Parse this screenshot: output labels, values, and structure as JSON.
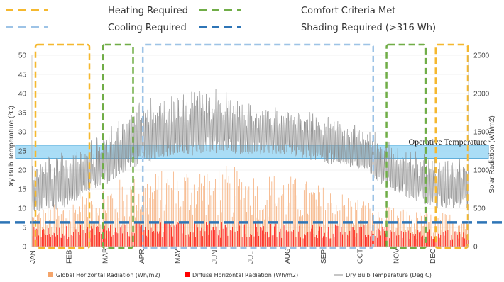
{
  "chart_data": {
    "type": "area",
    "xlabel": "",
    "ylabel_left": "Dry Bulb Temperature (°C)",
    "ylabel_right": "Solar Radiation (Wh/m2)",
    "ylim_left": [
      0,
      50
    ],
    "ylim_right": [
      0,
      2500
    ],
    "yticks_left": [
      "0",
      "5",
      "10",
      "15",
      "20",
      "25",
      "30",
      "35",
      "40",
      "45",
      "50"
    ],
    "yticks_right": [
      "0",
      "500",
      "1000",
      "1500",
      "2000",
      "2500"
    ],
    "months": [
      "JAN",
      "FEB",
      "MAR",
      "APR",
      "MAY",
      "JUN",
      "JUL",
      "AUG",
      "SEP",
      "OCT",
      "NOV",
      "DEC"
    ],
    "series": [
      {
        "name": "Global Horizontal Radiation (Wh/m2)",
        "color": "#f4a46a",
        "monthly_peak_wh_m2": [
          500,
          600,
          850,
          950,
          1050,
          1100,
          1000,
          950,
          800,
          650,
          500,
          450
        ]
      },
      {
        "name": "Diffuse Horizontal Radiation (Wh/m2)",
        "color": "#ff0000",
        "monthly_peak_wh_m2": [
          250,
          280,
          300,
          320,
          330,
          320,
          320,
          300,
          300,
          280,
          250,
          230
        ]
      },
      {
        "name": "Dry Bulb Temperature (Deg C)",
        "color": "#8c8c8c",
        "monthly_range_c": [
          [
            7,
            24
          ],
          [
            8,
            26
          ],
          [
            14,
            31
          ],
          [
            19,
            39
          ],
          [
            21,
            41
          ],
          [
            22,
            43
          ],
          [
            22,
            38
          ],
          [
            22,
            37
          ],
          [
            20,
            35
          ],
          [
            18,
            33
          ],
          [
            12,
            28
          ],
          [
            8,
            24
          ]
        ]
      }
    ],
    "legend_top": [
      {
        "label": "Heating Required",
        "color": "#f5b82e",
        "style": "dashed"
      },
      {
        "label": "Comfort Criteria Met",
        "color": "#70ad47",
        "style": "dashed"
      },
      {
        "label": "Cooling Required",
        "color": "#9dc3e6",
        "style": "dashed"
      },
      {
        "label": "Shading Required (>316 Wh)",
        "color": "#2e75b6",
        "style": "dashed"
      }
    ],
    "operative_band": {
      "label": "Operative Temperature",
      "range_c": [
        23,
        26.5
      ],
      "fill": "#9bd7f5",
      "stroke": "#2f8fc9"
    },
    "shading_threshold_wh_m2": 316,
    "periods": [
      {
        "type": "heating",
        "start_month": 0,
        "end_month": 1.6
      },
      {
        "type": "comfort",
        "start_month": 1.85,
        "end_month": 2.8
      },
      {
        "type": "cooling",
        "start_month": 2.95,
        "end_month": 9.4
      },
      {
        "type": "comfort",
        "start_month": 9.65,
        "end_month": 10.85
      },
      {
        "type": "heating",
        "start_month": 11.0,
        "end_month": 12.0
      }
    ],
    "bottom_legend": [
      {
        "label": "Global Horizontal Radiation (Wh/m2)",
        "color": "#f4a46a",
        "marker": "square"
      },
      {
        "label": "Diffuse Horizontal Radiation (Wh/m2)",
        "color": "#ff0000",
        "marker": "square"
      },
      {
        "label": "Dry Bulb Temperature (Deg C)",
        "color": "#8c8c8c",
        "marker": "line"
      }
    ]
  }
}
